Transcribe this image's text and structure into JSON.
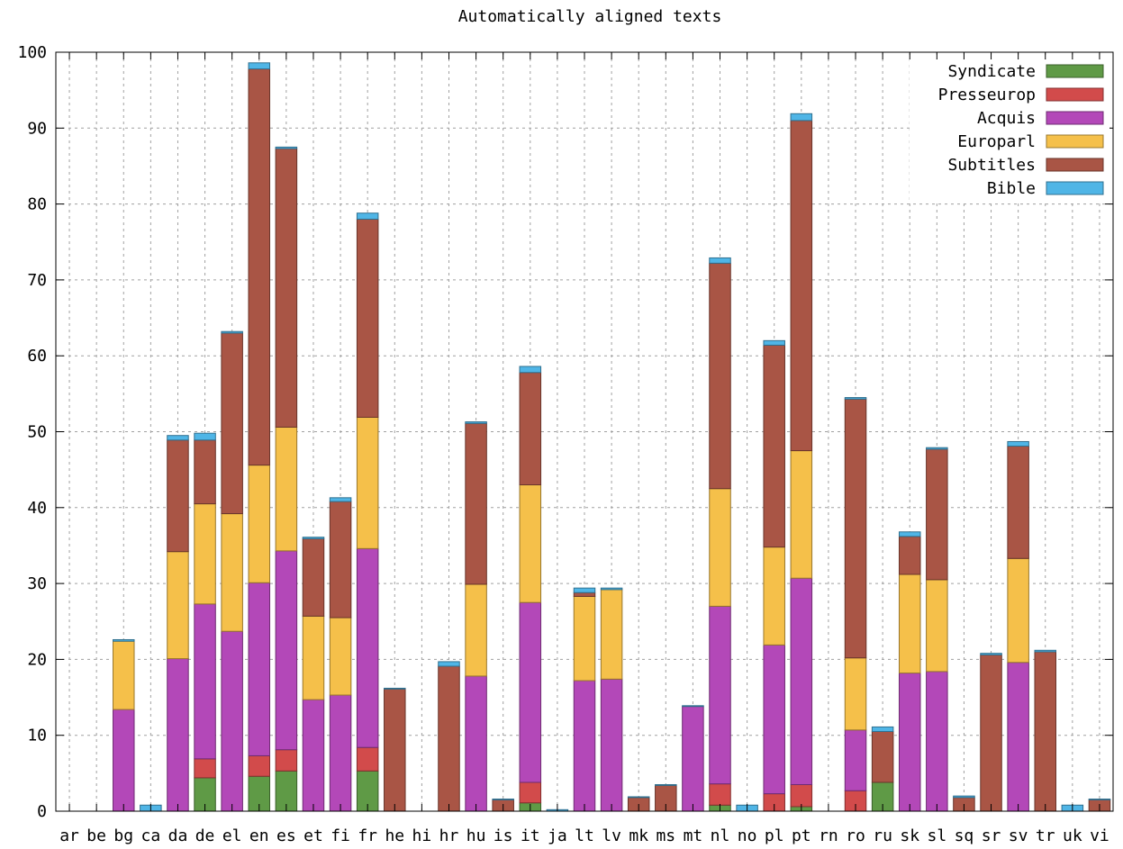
{
  "chart_data": {
    "type": "bar",
    "stacked": true,
    "title": "Automatically aligned texts",
    "xlabel": "",
    "ylabel": "",
    "ylim": [
      0,
      100
    ],
    "yticks": [
      0,
      10,
      20,
      30,
      40,
      50,
      60,
      70,
      80,
      90,
      100
    ],
    "grid": true,
    "legend_position": "top-right",
    "categories": [
      "ar",
      "be",
      "bg",
      "ca",
      "da",
      "de",
      "el",
      "en",
      "es",
      "et",
      "fi",
      "fr",
      "he",
      "hi",
      "hr",
      "hu",
      "is",
      "it",
      "ja",
      "lt",
      "lv",
      "mk",
      "ms",
      "mt",
      "nl",
      "no",
      "pl",
      "pt",
      "rn",
      "ro",
      "ru",
      "sk",
      "sl",
      "sq",
      "sr",
      "sv",
      "tr",
      "uk",
      "vi"
    ],
    "series": [
      {
        "name": "Syndicate",
        "color": "#5f9a46",
        "values": [
          0,
          0,
          0,
          0,
          0,
          4.4,
          0,
          4.6,
          5.3,
          0,
          0,
          5.3,
          0,
          0,
          0,
          0,
          0,
          1.1,
          0,
          0,
          0,
          0,
          0,
          0,
          0.8,
          0,
          0,
          0.6,
          0,
          0,
          3.8,
          0,
          0,
          0,
          0,
          0,
          0,
          0,
          0
        ]
      },
      {
        "name": "Presseurop",
        "color": "#d24b4b",
        "values": [
          0,
          0,
          0,
          0,
          0,
          2.5,
          0,
          2.7,
          2.8,
          0,
          0,
          3.1,
          0,
          0,
          0,
          0,
          0,
          2.7,
          0,
          0,
          0,
          0,
          0,
          0,
          2.8,
          0,
          2.3,
          2.9,
          0,
          2.7,
          0,
          0,
          0,
          0,
          0,
          0,
          0,
          0,
          0
        ]
      },
      {
        "name": "Acquis",
        "color": "#b348b8",
        "values": [
          0,
          0,
          13.4,
          0,
          20.1,
          20.4,
          23.7,
          22.8,
          26.2,
          14.7,
          15.3,
          26.2,
          0,
          0,
          0,
          17.8,
          0,
          23.7,
          0,
          17.2,
          17.4,
          0,
          0,
          13.8,
          23.4,
          0,
          19.6,
          27.2,
          0,
          8.0,
          0,
          18.2,
          18.4,
          0,
          0,
          19.6,
          0,
          0,
          0
        ]
      },
      {
        "name": "Europarl",
        "color": "#f5c04a",
        "values": [
          0,
          0,
          9.0,
          0,
          14.1,
          13.2,
          15.5,
          15.5,
          16.3,
          11.0,
          10.2,
          17.3,
          0,
          0,
          0,
          12.1,
          0,
          15.5,
          0,
          11.1,
          11.8,
          0,
          0,
          0,
          15.5,
          0,
          12.9,
          16.8,
          0,
          9.5,
          0,
          13.0,
          12.1,
          0,
          0,
          13.7,
          0,
          0,
          0
        ]
      },
      {
        "name": "Subtitles",
        "color": "#a95545",
        "values": [
          0,
          0,
          0,
          0,
          14.7,
          8.4,
          23.8,
          52.2,
          36.7,
          10.2,
          15.3,
          26.1,
          16.1,
          0,
          19.1,
          21.2,
          1.5,
          14.8,
          0,
          0.5,
          0,
          1.8,
          3.4,
          0,
          29.7,
          0,
          26.6,
          43.5,
          0,
          34.1,
          6.7,
          5.0,
          17.2,
          1.8,
          20.6,
          14.8,
          21.0,
          0,
          1.5
        ]
      },
      {
        "name": "Bible",
        "color": "#4fb5e6",
        "values": [
          0,
          0,
          0.2,
          0.8,
          0.6,
          0.9,
          0.2,
          0.8,
          0.2,
          0.2,
          0.5,
          0.8,
          0.1,
          0,
          0.6,
          0.2,
          0.1,
          0.8,
          0.2,
          0.6,
          0.2,
          0.1,
          0.1,
          0.1,
          0.7,
          0.8,
          0.6,
          0.9,
          0,
          0.2,
          0.6,
          0.6,
          0.2,
          0.2,
          0.2,
          0.6,
          0.2,
          0.8,
          0.1
        ]
      }
    ]
  }
}
